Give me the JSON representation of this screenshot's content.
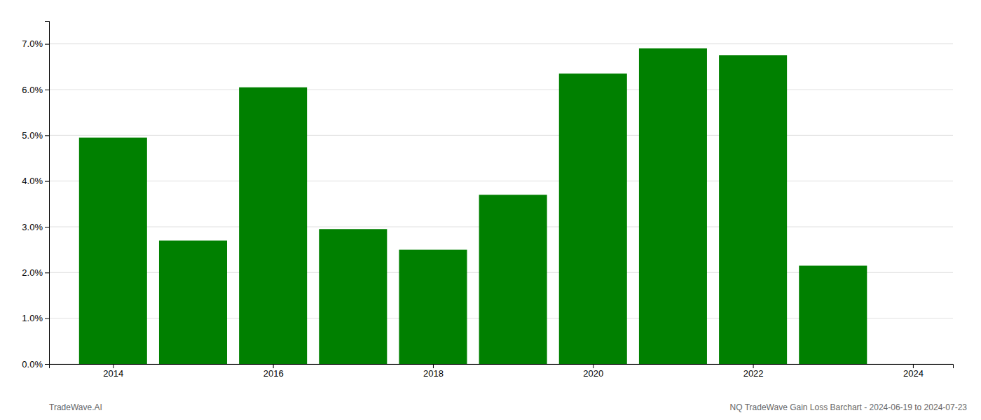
{
  "chart_data": {
    "type": "bar",
    "x": [
      2014,
      2015,
      2016,
      2017,
      2018,
      2019,
      2020,
      2021,
      2022,
      2023
    ],
    "values": [
      0.0495,
      0.027,
      0.0605,
      0.0295,
      0.025,
      0.037,
      0.0635,
      0.069,
      0.0675,
      0.0215
    ],
    "color": "#008000",
    "xlim": [
      2013.2,
      2024.5
    ],
    "xticks": [
      2014,
      2016,
      2018,
      2020,
      2022,
      2024
    ],
    "ylim": [
      0,
      0.075
    ],
    "yticks": [
      {
        "value": 0.0,
        "label": "0.0%"
      },
      {
        "value": 0.01,
        "label": "1.0%"
      },
      {
        "value": 0.02,
        "label": "2.0%"
      },
      {
        "value": 0.03,
        "label": "3.0%"
      },
      {
        "value": 0.04,
        "label": "4.0%"
      },
      {
        "value": 0.05,
        "label": "5.0%"
      },
      {
        "value": 0.06,
        "label": "6.0%"
      },
      {
        "value": 0.07,
        "label": "7.0%"
      }
    ],
    "grid": true,
    "annotations": [
      "TradeWave.AI",
      "NQ TradeWave Gain Loss Barchart - 2024-06-19 to 2024-07-23"
    ]
  }
}
